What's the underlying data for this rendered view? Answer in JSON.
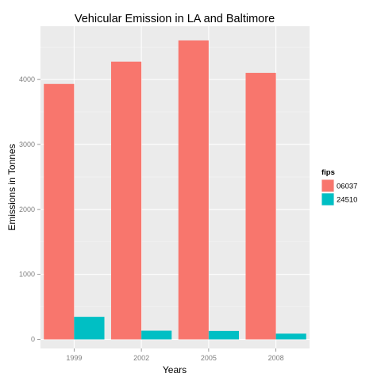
{
  "chart_data": {
    "type": "bar",
    "title": "Vehicular Emission in LA and Baltimore",
    "xlabel": "Years",
    "ylabel": "Emissions in Tonnes",
    "categories": [
      "1999",
      "2002",
      "2005",
      "2008"
    ],
    "series": [
      {
        "name": "06037",
        "color": "#f8766d",
        "values": [
          3931,
          4274,
          4601,
          4101
        ]
      },
      {
        "name": "24510",
        "color": "#00bfc4",
        "values": [
          347,
          134,
          130,
          88
        ]
      }
    ],
    "ylim": [
      -140,
      4820
    ],
    "yticks": [
      0,
      1000,
      2000,
      3000,
      4000
    ],
    "grid": true,
    "legend": {
      "title": "fips",
      "position": "right"
    }
  }
}
